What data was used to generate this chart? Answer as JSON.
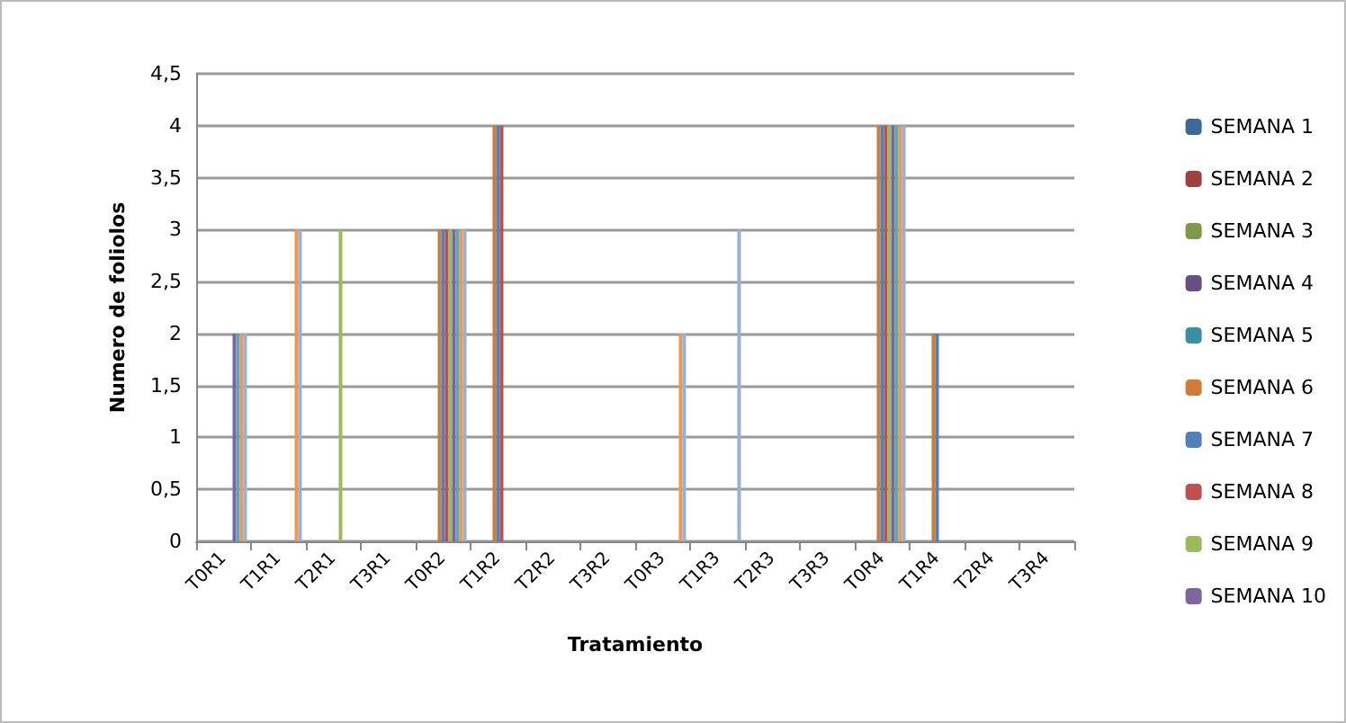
{
  "chart_data": {
    "type": "bar",
    "xlabel": "Tratamiento",
    "ylabel": "Numero de foliolos",
    "categories": [
      "T0R1",
      "T1R1",
      "T2R1",
      "T3R1",
      "T0R2",
      "T1R2",
      "T2R2",
      "T3R2",
      "T0R3",
      "T1R3",
      "T2R3",
      "T3R3",
      "T0R4",
      "T1R4",
      "T2R4",
      "T3R4"
    ],
    "series": [
      {
        "name": "SEMANA 1",
        "color": "#3f679a",
        "values": [
          0,
          0,
          0,
          0,
          0,
          0,
          0,
          0,
          0,
          0,
          0,
          0,
          0,
          0,
          0,
          0
        ]
      },
      {
        "name": "SEMANA 2",
        "color": "#9e413e",
        "values": [
          0,
          0,
          0,
          0,
          0,
          0,
          0,
          0,
          0,
          0,
          0,
          0,
          0,
          0,
          0,
          0
        ]
      },
      {
        "name": "SEMANA 3",
        "color": "#7e9a48",
        "values": [
          0,
          0,
          0,
          0,
          0,
          0,
          0,
          0,
          0,
          0,
          0,
          0,
          0,
          0,
          0,
          0
        ]
      },
      {
        "name": "SEMANA 4",
        "color": "#664f87",
        "values": [
          0,
          0,
          0,
          0,
          0,
          0,
          0,
          0,
          0,
          0,
          0,
          0,
          0,
          0,
          0,
          0
        ]
      },
      {
        "name": "SEMANA 5",
        "color": "#3a8fa3",
        "values": [
          0,
          0,
          0,
          0,
          0,
          0,
          0,
          0,
          0,
          0,
          0,
          0,
          0,
          0,
          0,
          0
        ]
      },
      {
        "name": "SEMANA 6",
        "color": "#d07b38",
        "values": [
          0,
          0,
          0,
          0,
          3,
          4,
          0,
          0,
          0,
          0,
          0,
          0,
          4,
          2,
          0,
          0
        ]
      },
      {
        "name": "SEMANA 7",
        "color": "#4f81bd",
        "values": [
          0,
          0,
          0,
          0,
          3,
          4,
          0,
          0,
          0,
          0,
          0,
          0,
          4,
          2,
          0,
          0
        ]
      },
      {
        "name": "SEMANA 8",
        "color": "#c0504d",
        "values": [
          0,
          0,
          0,
          0,
          3,
          4,
          0,
          0,
          0,
          0,
          0,
          0,
          4,
          0,
          0,
          0
        ]
      },
      {
        "name": "SEMANA 9",
        "color": "#9bbb59",
        "values": [
          0,
          0,
          3,
          0,
          3,
          0,
          0,
          0,
          0,
          0,
          0,
          0,
          4,
          0,
          0,
          0
        ]
      },
      {
        "name": "SEMANA 10",
        "color": "#8064a2",
        "values": [
          2,
          0,
          0,
          0,
          3,
          0,
          0,
          0,
          0,
          0,
          0,
          0,
          4,
          0,
          0,
          0
        ]
      },
      {
        "color": "#4bacc6",
        "values": [
          2,
          0,
          0,
          0,
          3,
          0,
          0,
          0,
          0,
          0,
          0,
          0,
          4,
          0,
          0,
          0
        ]
      },
      {
        "color": "#f79646",
        "values": [
          2,
          3,
          0,
          0,
          3,
          0,
          0,
          0,
          2,
          0,
          0,
          0,
          4,
          0,
          0,
          0
        ]
      },
      {
        "color": "#95b3d7",
        "values": [
          2,
          3,
          0,
          0,
          3,
          0,
          0,
          0,
          2,
          3,
          0,
          0,
          4,
          0,
          0,
          0
        ]
      }
    ],
    "ylim": [
      0,
      4.5
    ],
    "yticks": [
      0,
      {
        "value": 0.5,
        "label": "0,5"
      },
      1,
      {
        "value": 1.5,
        "label": "1,5"
      },
      2,
      {
        "value": 2.5,
        "label": "2,5"
      },
      3,
      {
        "value": 3.5,
        "label": "3,5"
      },
      4,
      {
        "value": 4.5,
        "label": "4,5"
      }
    ],
    "grid": "y",
    "legend": "right"
  }
}
